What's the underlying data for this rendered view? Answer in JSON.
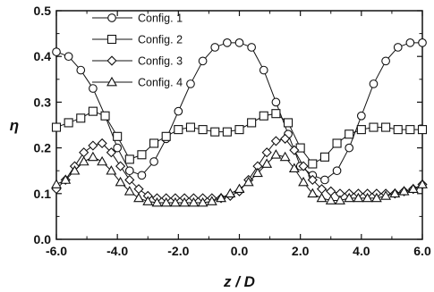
{
  "chart_data": {
    "type": "line",
    "xlabel": "z / D",
    "ylabel": "η",
    "xlim": [
      -6,
      6
    ],
    "ylim": [
      0,
      0.5
    ],
    "x_ticks": [
      {
        "value": -6,
        "label": "-6.0"
      },
      {
        "value": -4,
        "label": "-4.0"
      },
      {
        "value": -2,
        "label": "-2.0"
      },
      {
        "value": 0,
        "label": "0.0"
      },
      {
        "value": 2,
        "label": "2.0"
      },
      {
        "value": 4,
        "label": "4.0"
      },
      {
        "value": 6,
        "label": "6.0"
      }
    ],
    "y_ticks": [
      {
        "value": 0,
        "label": "0.0"
      },
      {
        "value": 0.1,
        "label": "0.1"
      },
      {
        "value": 0.2,
        "label": "0.2"
      },
      {
        "value": 0.3,
        "label": "0.3"
      },
      {
        "value": 0.4,
        "label": "0.4"
      },
      {
        "value": 0.5,
        "label": "0.5"
      }
    ],
    "grid": false,
    "legend_position": "top-left",
    "series": [
      {
        "name": "Config. 1",
        "marker": "circle",
        "color": "#111111",
        "x": [
          -6.0,
          -5.6,
          -5.2,
          -4.8,
          -4.4,
          -4.0,
          -3.6,
          -3.2,
          -2.8,
          -2.4,
          -2.0,
          -1.6,
          -1.2,
          -0.8,
          -0.4,
          0.0,
          0.4,
          0.8,
          1.2,
          1.6,
          2.0,
          2.4,
          2.8,
          3.2,
          3.6,
          4.0,
          4.4,
          4.8,
          5.2,
          5.6,
          6.0
        ],
        "y": [
          0.41,
          0.4,
          0.37,
          0.33,
          0.27,
          0.2,
          0.15,
          0.14,
          0.17,
          0.22,
          0.28,
          0.34,
          0.39,
          0.42,
          0.43,
          0.43,
          0.42,
          0.37,
          0.3,
          0.23,
          0.16,
          0.14,
          0.13,
          0.15,
          0.2,
          0.27,
          0.34,
          0.39,
          0.42,
          0.43,
          0.43
        ]
      },
      {
        "name": "Config. 2",
        "marker": "square",
        "color": "#111111",
        "x": [
          -6.0,
          -5.6,
          -5.2,
          -4.8,
          -4.4,
          -4.0,
          -3.6,
          -3.2,
          -2.8,
          -2.4,
          -2.0,
          -1.6,
          -1.2,
          -0.8,
          -0.4,
          0.0,
          0.4,
          0.8,
          1.2,
          1.6,
          2.0,
          2.4,
          2.8,
          3.2,
          3.6,
          4.0,
          4.4,
          4.8,
          5.2,
          5.6,
          6.0
        ],
        "y": [
          0.245,
          0.255,
          0.265,
          0.28,
          0.27,
          0.225,
          0.175,
          0.185,
          0.21,
          0.225,
          0.24,
          0.245,
          0.24,
          0.235,
          0.235,
          0.24,
          0.255,
          0.27,
          0.275,
          0.255,
          0.2,
          0.165,
          0.18,
          0.21,
          0.23,
          0.24,
          0.245,
          0.245,
          0.24,
          0.24,
          0.24
        ]
      },
      {
        "name": "Config. 3",
        "marker": "diamond",
        "color": "#111111",
        "x": [
          -6.0,
          -5.7,
          -5.4,
          -5.1,
          -4.8,
          -4.5,
          -4.2,
          -3.9,
          -3.6,
          -3.3,
          -3.0,
          -2.7,
          -2.4,
          -2.1,
          -1.8,
          -1.5,
          -1.2,
          -0.9,
          -0.6,
          -0.3,
          0.0,
          0.3,
          0.6,
          0.9,
          1.2,
          1.5,
          1.8,
          2.1,
          2.4,
          2.7,
          3.0,
          3.3,
          3.6,
          3.9,
          4.2,
          4.5,
          4.8,
          5.1,
          5.4,
          5.7,
          6.0
        ],
        "y": [
          0.11,
          0.13,
          0.16,
          0.19,
          0.205,
          0.21,
          0.19,
          0.16,
          0.13,
          0.11,
          0.095,
          0.09,
          0.09,
          0.09,
          0.09,
          0.09,
          0.09,
          0.09,
          0.09,
          0.095,
          0.105,
          0.13,
          0.16,
          0.19,
          0.215,
          0.22,
          0.195,
          0.16,
          0.13,
          0.11,
          0.105,
          0.1,
          0.1,
          0.1,
          0.1,
          0.1,
          0.1,
          0.1,
          0.105,
          0.11,
          0.12
        ]
      },
      {
        "name": "Config. 4",
        "marker": "triangle",
        "color": "#111111",
        "x": [
          -6.0,
          -5.7,
          -5.4,
          -5.1,
          -4.8,
          -4.5,
          -4.2,
          -3.9,
          -3.6,
          -3.3,
          -3.0,
          -2.7,
          -2.4,
          -2.1,
          -1.8,
          -1.5,
          -1.2,
          -0.9,
          -0.6,
          -0.3,
          0.0,
          0.3,
          0.6,
          0.9,
          1.2,
          1.5,
          1.8,
          2.1,
          2.4,
          2.7,
          3.0,
          3.3,
          3.6,
          3.9,
          4.2,
          4.5,
          4.8,
          5.1,
          5.4,
          5.7,
          6.0
        ],
        "y": [
          0.12,
          0.13,
          0.15,
          0.17,
          0.18,
          0.17,
          0.15,
          0.125,
          0.105,
          0.09,
          0.083,
          0.08,
          0.08,
          0.08,
          0.08,
          0.08,
          0.08,
          0.083,
          0.09,
          0.1,
          0.11,
          0.125,
          0.145,
          0.165,
          0.185,
          0.18,
          0.155,
          0.125,
          0.1,
          0.09,
          0.085,
          0.085,
          0.09,
          0.09,
          0.09,
          0.09,
          0.095,
          0.1,
          0.105,
          0.11,
          0.12
        ]
      }
    ]
  }
}
